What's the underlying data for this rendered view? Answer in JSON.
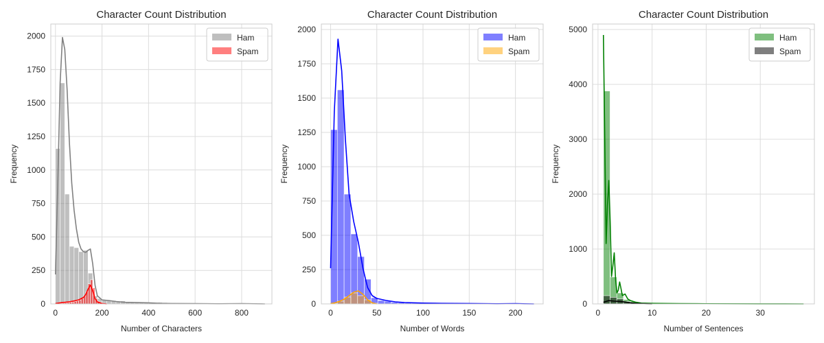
{
  "chart_data": [
    {
      "type": "histogram",
      "title": "Character Count Distribution",
      "xlabel": "Number of Characters",
      "ylabel": "Frequency",
      "xlim": [
        -20,
        930
      ],
      "ylim": [
        0,
        2090
      ],
      "xticks": [
        0,
        200,
        400,
        600,
        800
      ],
      "yticks": [
        0,
        250,
        500,
        750,
        1000,
        1250,
        1500,
        1750,
        2000
      ],
      "grid": true,
      "legend_position": "top-right",
      "series": [
        {
          "name": "Ham",
          "color": "#808080",
          "bin_edges": [
            0,
            20,
            40,
            60,
            80,
            100,
            120,
            140,
            160,
            180,
            200,
            220,
            240,
            260,
            280,
            300,
            320,
            340,
            360,
            380,
            400,
            420,
            440,
            460,
            480,
            500,
            520,
            540,
            560,
            580,
            600,
            620,
            640,
            660,
            680,
            700,
            720,
            740,
            760,
            780,
            800,
            820,
            840,
            860,
            880,
            900
          ],
          "counts": [
            1160,
            1650,
            820,
            430,
            420,
            390,
            400,
            230,
            60,
            40,
            30,
            25,
            25,
            20,
            22,
            15,
            12,
            10,
            8,
            12,
            10,
            8,
            12,
            10,
            5,
            4,
            4,
            3,
            3,
            2,
            4,
            2,
            2,
            2,
            2,
            1,
            1,
            1,
            1,
            1,
            2,
            1,
            1,
            1,
            1
          ],
          "kde_x": [
            0,
            10,
            20,
            30,
            40,
            50,
            60,
            70,
            80,
            90,
            100,
            110,
            120,
            130,
            140,
            150,
            160,
            170,
            180,
            200,
            230,
            260,
            300,
            350,
            400,
            450,
            500,
            600,
            700,
            800,
            900
          ],
          "kde_y": [
            220,
            900,
            1650,
            1990,
            1900,
            1600,
            1200,
            900,
            700,
            560,
            460,
            410,
            390,
            385,
            400,
            410,
            300,
            140,
            60,
            30,
            25,
            18,
            12,
            10,
            8,
            4,
            3,
            2,
            1,
            2,
            0
          ]
        },
        {
          "name": "Spam",
          "color": "#ff0000",
          "bin_edges": [
            0,
            10,
            20,
            30,
            40,
            50,
            60,
            70,
            80,
            90,
            100,
            110,
            120,
            130,
            140,
            150,
            160,
            170,
            180,
            190,
            200,
            210,
            220
          ],
          "counts": [
            2,
            4,
            5,
            6,
            8,
            10,
            12,
            14,
            18,
            22,
            28,
            40,
            60,
            90,
            150,
            180,
            120,
            40,
            20,
            10,
            6,
            3
          ],
          "kde_x": [
            0,
            20,
            40,
            60,
            80,
            100,
            120,
            130,
            140,
            150,
            160,
            170,
            180,
            200,
            220
          ],
          "kde_y": [
            3,
            8,
            12,
            16,
            22,
            30,
            48,
            70,
            110,
            140,
            100,
            40,
            15,
            3,
            0
          ]
        }
      ]
    },
    {
      "type": "histogram",
      "title": "Character Count Distribution",
      "xlabel": "Number of Words",
      "ylabel": "Frequency",
      "xlim": [
        -10,
        230
      ],
      "ylim": [
        0,
        2040
      ],
      "xticks": [
        0,
        50,
        100,
        150,
        200
      ],
      "yticks": [
        0,
        250,
        500,
        750,
        1000,
        1250,
        1500,
        1750,
        2000
      ],
      "grid": true,
      "legend_position": "top-right",
      "series": [
        {
          "name": "Ham",
          "color": "#0000ff",
          "bin_edges": [
            0,
            7.3,
            14.6,
            21.9,
            29.2,
            36.5,
            43.8,
            51.1,
            58.4,
            65.7,
            73,
            80.3,
            87.6,
            94.9,
            102.2,
            109.5,
            116.8,
            124.1,
            131.4,
            138.7,
            146,
            153.3,
            160.6,
            167.9,
            175.2,
            182.5,
            189.8,
            197.1,
            204.4,
            211.7,
            219
          ],
          "counts": [
            1270,
            1560,
            800,
            510,
            345,
            180,
            45,
            25,
            20,
            12,
            10,
            8,
            6,
            5,
            4,
            4,
            3,
            3,
            2,
            2,
            2,
            2,
            1,
            1,
            1,
            1,
            1,
            1,
            1,
            1
          ],
          "kde_x": [
            0,
            4,
            8,
            12,
            16,
            20,
            25,
            30,
            35,
            40,
            45,
            50,
            60,
            70,
            80,
            100,
            120,
            150,
            180,
            200,
            220
          ],
          "kde_y": [
            260,
            1400,
            1930,
            1700,
            1200,
            800,
            600,
            450,
            260,
            120,
            60,
            40,
            25,
            15,
            10,
            6,
            4,
            3,
            1,
            2,
            0
          ]
        },
        {
          "name": "Spam",
          "color": "#ffa500",
          "bin_edges": [
            0,
            7.3,
            14.6,
            21.9,
            29.2,
            36.5,
            43.8,
            51.1
          ],
          "counts": [
            3,
            20,
            50,
            80,
            60,
            30,
            5
          ],
          "kde_x": [
            0,
            5,
            10,
            15,
            20,
            25,
            30,
            35,
            40,
            45,
            50
          ],
          "kde_y": [
            2,
            8,
            20,
            35,
            60,
            85,
            95,
            70,
            30,
            8,
            0
          ]
        }
      ]
    },
    {
      "type": "histogram",
      "title": "Character Count Distribution",
      "xlabel": "Number of Sentences",
      "ylabel": "Frequency",
      "xlim": [
        -1,
        40
      ],
      "ylim": [
        0,
        5100
      ],
      "xticks": [
        0,
        10,
        20,
        30
      ],
      "yticks": [
        0,
        1000,
        2000,
        3000,
        4000,
        5000
      ],
      "grid": true,
      "legend_position": "top-right",
      "series": [
        {
          "name": "Ham",
          "color": "#008000",
          "bin_edges": [
            1,
            2.23,
            3.47,
            4.7,
            5.93,
            7.17,
            8.4,
            9.63,
            10.87,
            12.1,
            13.33,
            14.57,
            15.8,
            17.03,
            18.27,
            19.5,
            20.73,
            21.97,
            23.2,
            24.43,
            25.67,
            26.9,
            28.13,
            29.37,
            30.6,
            31.83,
            33.07,
            34.3,
            35.53,
            36.77,
            38
          ],
          "counts": [
            3880,
            490,
            200,
            80,
            40,
            20,
            10,
            6,
            5,
            4,
            3,
            2,
            2,
            2,
            1,
            1,
            1,
            1,
            1,
            1,
            1,
            1,
            1,
            1,
            1,
            1,
            1,
            1,
            1,
            1
          ],
          "kde_x": [
            1,
            1.25,
            1.5,
            1.75,
            2,
            2.25,
            2.5,
            2.75,
            3,
            3.25,
            3.5,
            3.75,
            4,
            4.25,
            4.5,
            5,
            5.5,
            6,
            7,
            8,
            10,
            15,
            20,
            30,
            38
          ],
          "kde_y": [
            4900,
            3000,
            1100,
            1800,
            2250,
            1500,
            500,
            700,
            930,
            450,
            200,
            250,
            400,
            280,
            150,
            180,
            90,
            60,
            30,
            15,
            10,
            6,
            3,
            1,
            0
          ]
        },
        {
          "name": "Spam",
          "color": "#000000",
          "bin_edges": [
            1,
            2.23,
            3.47,
            4.7,
            5.93,
            7.17,
            8.4,
            9.63
          ],
          "counts": [
            150,
            120,
            90,
            40,
            15,
            8,
            3
          ],
          "kde_x": [
            1,
            2,
            3,
            4,
            5,
            6,
            7,
            8,
            9,
            10
          ],
          "kde_y": [
            30,
            60,
            50,
            45,
            35,
            20,
            10,
            5,
            2,
            0
          ]
        }
      ]
    }
  ]
}
